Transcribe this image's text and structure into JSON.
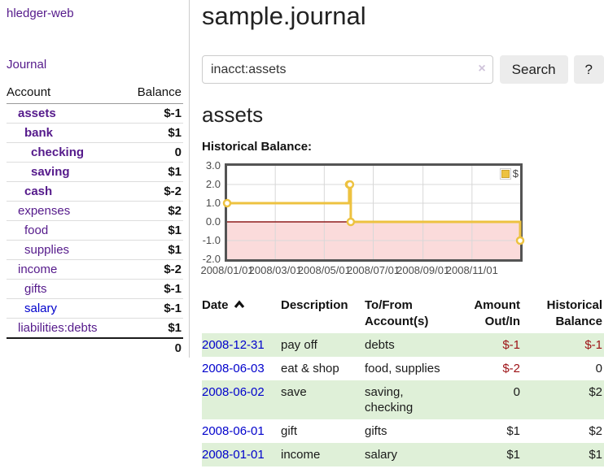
{
  "app": {
    "brand": "hledger-web"
  },
  "colors": {
    "link_purple": "#551a8b",
    "link_blue": "#0000cc",
    "negative_strong": "#9d1115",
    "negative_soft": "#c1747e",
    "row_stripe_green": "#dff0d8",
    "chart_line_gold": "#edc240",
    "chart_negative_fill": "#fbdbdb",
    "chart_zero_line": "#8f1d1d"
  },
  "sidebar": {
    "journal_label": "Journal",
    "accounts_table": {
      "headers": [
        "Account",
        "Balance"
      ],
      "rows": [
        {
          "account": "assets",
          "balance": "$-1",
          "depth": 1,
          "bold": true
        },
        {
          "account": "bank",
          "balance": "$1",
          "depth": 2,
          "bold": true
        },
        {
          "account": "checking",
          "balance": "0",
          "depth": 3,
          "bold": true
        },
        {
          "account": "saving",
          "balance": "$1",
          "depth": 3,
          "bold": true
        },
        {
          "account": "cash",
          "balance": "$-2",
          "depth": 2,
          "bold": true
        },
        {
          "account": "expenses",
          "balance": "$2",
          "depth": 1,
          "bold": false
        },
        {
          "account": "food",
          "balance": "$1",
          "depth": 2,
          "bold": false
        },
        {
          "account": "supplies",
          "balance": "$1",
          "depth": 2,
          "bold": false
        },
        {
          "account": "income",
          "balance": "$-2",
          "depth": 1,
          "bold": false
        },
        {
          "account": "gifts",
          "balance": "$-1",
          "depth": 2,
          "bold": false
        },
        {
          "account": "salary",
          "balance": "$-1",
          "depth": 2,
          "bold": false,
          "link_color": "blue"
        },
        {
          "account": "liabilities:debts",
          "balance": "$1",
          "depth": 1,
          "bold": false
        }
      ],
      "total": "0"
    }
  },
  "main": {
    "title": "sample.journal",
    "search": {
      "value": "inacct:assets",
      "clear_icon": "×",
      "button_label": "Search",
      "help_label": "?"
    },
    "account_heading": "assets"
  },
  "chart_data": {
    "type": "line",
    "title": "Historical Balance:",
    "step": true,
    "x_range": [
      "2008-01-01",
      "2008-12-31"
    ],
    "ylim": [
      -2,
      3
    ],
    "y_ticks": [
      "3.0",
      "2.0",
      "1.0",
      "0.0",
      "-1.0",
      "-2.0"
    ],
    "x_ticks": [
      {
        "date": "2008-01-01",
        "label": "2008/01/01"
      },
      {
        "date": "2008-03-01",
        "label": "2008/03/01"
      },
      {
        "date": "2008-05-01",
        "label": "2008/05/01"
      },
      {
        "date": "2008-07-01",
        "label": "2008/07/01"
      },
      {
        "date": "2008-09-01",
        "label": "2008/09/01"
      },
      {
        "date": "2008-11-01",
        "label": "2008/11/01"
      }
    ],
    "series": [
      {
        "name": "$",
        "color": "#edc240",
        "points": [
          {
            "x": "2008-01-01",
            "y": 1
          },
          {
            "x": "2008-06-01",
            "y": 2
          },
          {
            "x": "2008-06-02",
            "y": 2
          },
          {
            "x": "2008-06-03",
            "y": 0
          },
          {
            "x": "2008-12-31",
            "y": -1
          }
        ]
      }
    ],
    "legend": {
      "position": "top-right",
      "entries": [
        {
          "label": "$",
          "color": "#edc240"
        }
      ]
    },
    "grid": true,
    "negative_region_shaded": true
  },
  "register_table": {
    "headers": [
      "Date",
      "Description",
      "To/From Account(s)",
      "Amount Out/In",
      "Historical Balance"
    ],
    "sort_icon": "chevron-up",
    "rows": [
      {
        "date": "2008-12-31",
        "description": "pay off",
        "accounts": "debts",
        "amount": "$-1",
        "balance": "$-1"
      },
      {
        "date": "2008-06-03",
        "description": "eat & shop",
        "accounts": "food, supplies",
        "amount": "$-2",
        "balance": "0"
      },
      {
        "date": "2008-06-02",
        "description": "save",
        "accounts": "saving, checking",
        "amount": "0",
        "balance": "$2"
      },
      {
        "date": "2008-06-01",
        "description": "gift",
        "accounts": "gifts",
        "amount": "$1",
        "balance": "$2"
      },
      {
        "date": "2008-01-01",
        "description": "income",
        "accounts": "salary",
        "amount": "$1",
        "balance": "$1"
      }
    ]
  }
}
